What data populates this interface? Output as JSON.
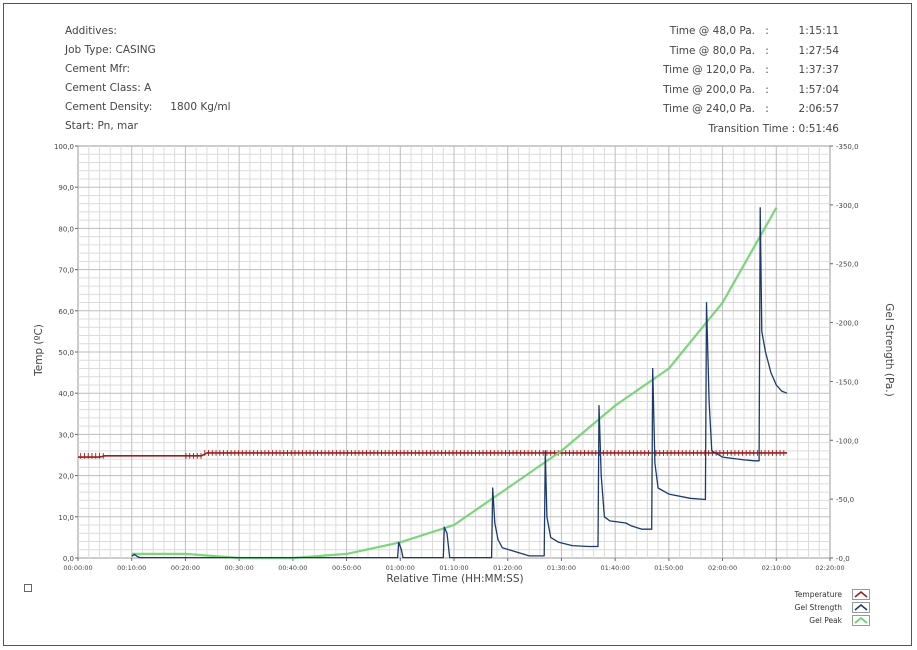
{
  "info": {
    "additives_label": "Additives:",
    "job_type": "Job Type: CASING",
    "cement_mfr": "Cement Mfr:",
    "cement_class": "Cement Class: A",
    "cement_density_label": "Cement Density:",
    "cement_density_value": "1800 Kg/ml",
    "start": "Start: Pn, mar"
  },
  "times": [
    {
      "label": "Time @ 48,0 Pa.",
      "sep": ":",
      "value": "1:15:11"
    },
    {
      "label": "Time @ 80,0 Pa.",
      "sep": ":",
      "value": "1:27:54"
    },
    {
      "label": "Time @ 120,0 Pa.",
      "sep": ":",
      "value": "1:37:37"
    },
    {
      "label": "Time @ 200,0 Pa.",
      "sep": ":",
      "value": "1:57:04"
    },
    {
      "label": "Time @ 240,0 Pa.",
      "sep": ":",
      "value": "2:06:57"
    }
  ],
  "transition": "Transition Time :  0:51:46",
  "legend": {
    "temperature": "Temperature",
    "gel_strength": "Gel Strength",
    "gel_peak": "Gel Peak"
  },
  "colors": {
    "temperature": "#9b1c1c",
    "gel_strength": "#1c3a6b",
    "gel_peak": "#6fd16f",
    "grid": "#c8c8c8"
  },
  "chart_data": {
    "type": "line",
    "xlabel": "Relative Time (HH:MM:SS)",
    "ylabel": "Temp (ºC)",
    "y2label": "Gel Strength (Pa.)",
    "xlim": [
      0,
      140
    ],
    "ylim": [
      0,
      100
    ],
    "y2lim": [
      0,
      -350
    ],
    "x_ticks": [
      "00:00:00",
      "00:10:00",
      "00:20:00",
      "00:30:00",
      "00:40:00",
      "00:50:00",
      "01:00:00",
      "01:10:00",
      "01:20:00",
      "01:30:00",
      "01:40:00",
      "01:50:00",
      "02:00:00",
      "02:10:00",
      "02:20:00"
    ],
    "y_ticks": [
      "0,0",
      "10,0",
      "20,0",
      "30,0",
      "40,0",
      "50,0",
      "60,0",
      "70,0",
      "80,0",
      "90,0",
      "100,0"
    ],
    "y2_ticks": [
      "-0,0",
      "-50,0",
      "-100,0",
      "-150,0",
      "-200,0",
      "-250,0",
      "-300,0",
      "-350,0"
    ],
    "grid": true,
    "legend_position": "bottom-right",
    "series": [
      {
        "name": "Temperature",
        "axis": "left",
        "x": [
          0,
          4,
          5,
          23,
          24,
          132
        ],
        "y": [
          24.5,
          24.5,
          24.8,
          24.8,
          25.5,
          25.5
        ]
      },
      {
        "name": "Gel Strength",
        "axis": "left",
        "x": [
          10,
          10.5,
          11,
          11.5,
          30,
          58,
          59.5,
          59.7,
          60.2,
          60.5,
          68,
          68.2,
          68.7,
          69.2,
          77,
          77.2,
          77.6,
          78.2,
          79,
          84,
          86.8,
          87,
          87.3,
          88,
          89.5,
          92,
          95,
          96.8,
          97,
          97.4,
          98,
          99,
          102,
          103,
          105,
          106.8,
          107,
          107.4,
          108,
          110,
          114,
          116.8,
          117,
          117.5,
          118,
          120,
          124,
          126,
          126.8,
          127,
          127.3,
          128,
          129,
          130,
          131,
          132
        ],
        "y": [
          0.4,
          0.9,
          0.4,
          0.1,
          0.1,
          0.1,
          0.1,
          3.8,
          2,
          0.1,
          0.1,
          7.5,
          6,
          0.1,
          0.1,
          17,
          8.5,
          4.5,
          2.5,
          0.5,
          0.5,
          26,
          10,
          5,
          3.8,
          3,
          2.8,
          2.8,
          37,
          20,
          10,
          9,
          8.5,
          7.8,
          7,
          7,
          46,
          23,
          17,
          15.5,
          14.5,
          14.2,
          62,
          38,
          26,
          24.5,
          23.8,
          23.6,
          23.6,
          85,
          55,
          50,
          45,
          42,
          40.5,
          40
        ]
      },
      {
        "name": "Gel Peak",
        "axis": "left",
        "x": [
          10,
          20,
          30,
          40,
          50,
          60,
          70,
          80,
          90,
          100,
          110,
          120,
          130
        ],
        "y": [
          1,
          1,
          0,
          0,
          1,
          3.8,
          8,
          17,
          26,
          37,
          46,
          62,
          85
        ]
      }
    ]
  }
}
